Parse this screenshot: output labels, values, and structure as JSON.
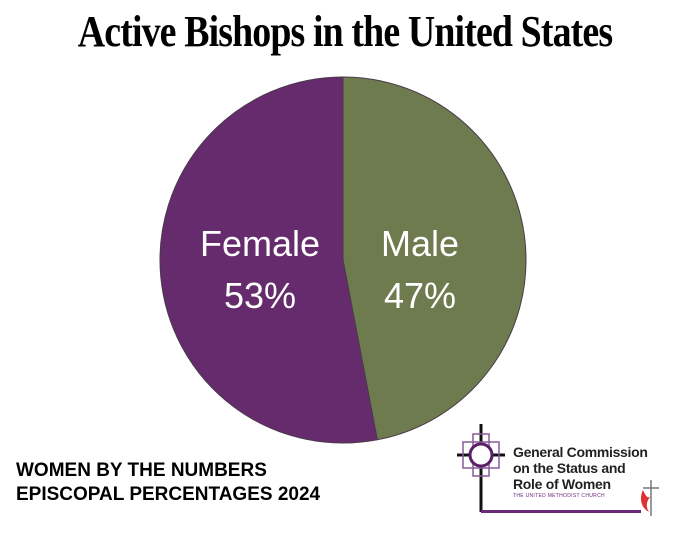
{
  "title": "Active Bishops in the United States",
  "footer": {
    "line1": "WOMEN BY THE NUMBERS",
    "line2": "EPISCOPAL PERCENTAGES 2024"
  },
  "logo": {
    "line1": "General Commission",
    "line2": "on the Status and",
    "line3": "Role of Women",
    "subtitle": "THE UNITED METHODIST CHURCH"
  },
  "labels": {
    "female_name": "Female",
    "female_pct": "53%",
    "male_name": "Male",
    "male_pct": "47%"
  },
  "colors": {
    "female": "#652b6c",
    "male": "#6e7b4e"
  },
  "chart_data": {
    "type": "pie",
    "title": "Active Bishops in the United States",
    "categories": [
      "Male",
      "Female"
    ],
    "values": [
      47,
      53
    ],
    "unit": "%",
    "colors": [
      "#6e7b4e",
      "#652b6c"
    ],
    "start_angle": "top, clockwise (Male first)",
    "legend": "none (labels on slices)"
  }
}
